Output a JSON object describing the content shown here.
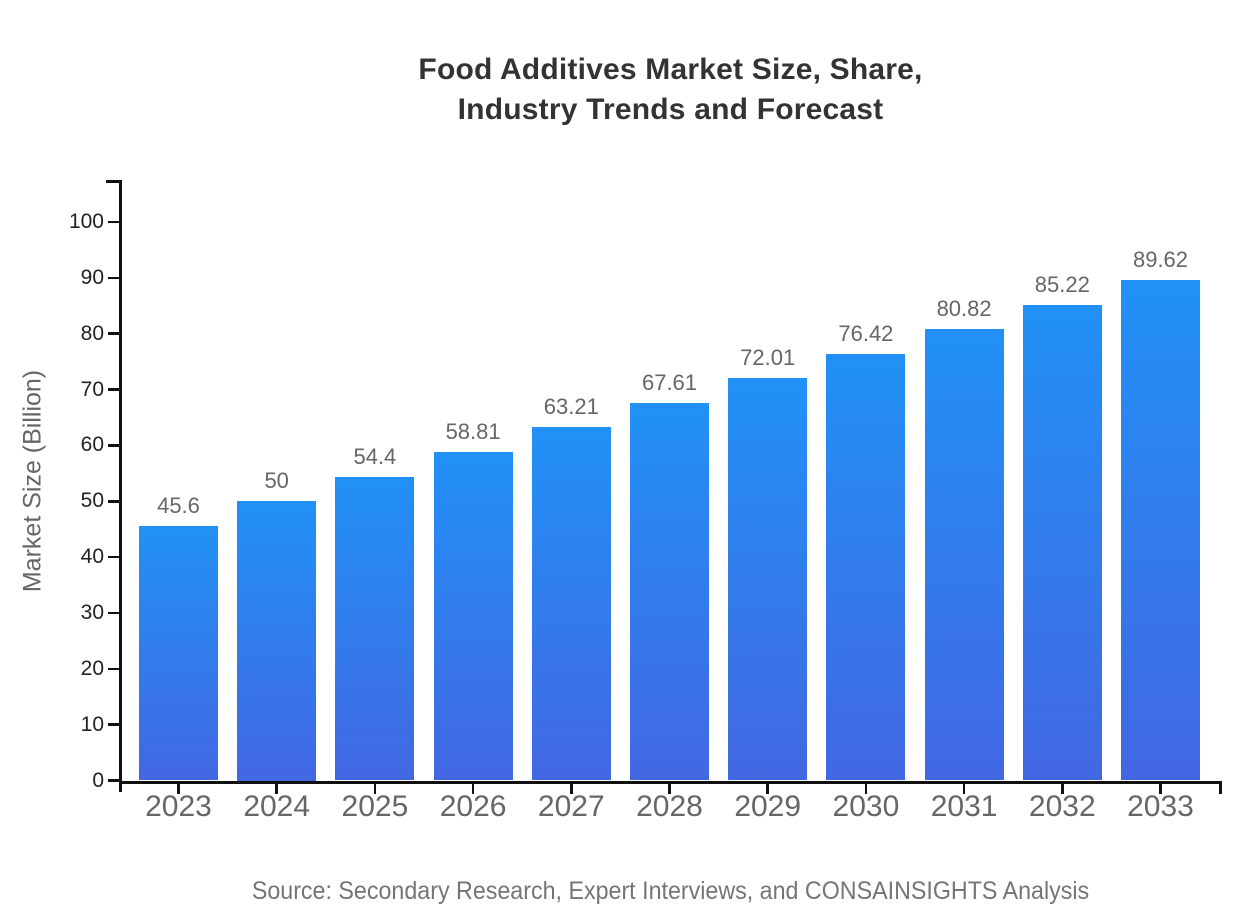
{
  "title": {
    "line1": "Food Additives Market Size, Share,",
    "line2": "Industry Trends and Forecast"
  },
  "source_note": "Source: Secondary Research, Expert Interviews, and CONSAINSIGHTS Analysis",
  "chart_data": {
    "type": "bar",
    "title": "Food Additives Market Size, Share, Industry Trends and Forecast",
    "categories": [
      "2023",
      "2024",
      "2025",
      "2026",
      "2027",
      "2028",
      "2029",
      "2030",
      "2031",
      "2032",
      "2033"
    ],
    "values": [
      45.6,
      50,
      54.4,
      58.81,
      63.21,
      67.61,
      72.01,
      76.42,
      80.82,
      85.22,
      89.62
    ],
    "xlabel": "",
    "ylabel": "Market Size (Billion)",
    "ylim": [
      0,
      100
    ],
    "ytick_step": 10,
    "grid": false,
    "legend": false,
    "value_labels_shown": true,
    "colors": {
      "bar_gradient_top": "#2191f5",
      "bar_gradient_bottom": "#4267e2",
      "axis": "#111111",
      "y_tick_label": "#222222",
      "x_tick_label": "#666666",
      "value_label": "#666666",
      "title": "#333333",
      "axis_title": "#666666",
      "source": "#757575",
      "background": "#ffffff"
    }
  }
}
